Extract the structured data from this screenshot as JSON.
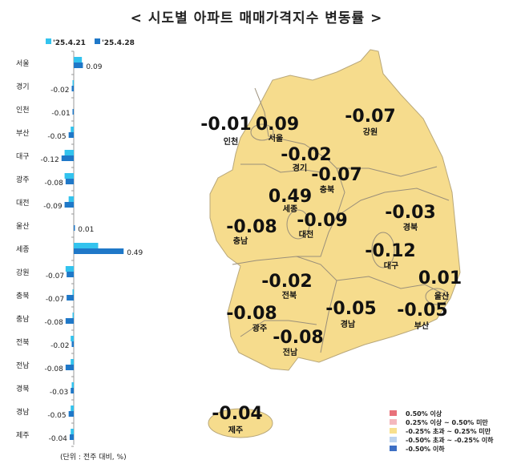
{
  "title": "< 시도별 아파트 매매가격지수 변동률 >",
  "chart_data": [
    {
      "type": "bar",
      "orientation": "horizontal",
      "categories": [
        "서울",
        "경기",
        "인천",
        "부산",
        "대구",
        "광주",
        "대전",
        "울산",
        "세종",
        "강원",
        "충북",
        "충남",
        "전북",
        "전남",
        "경북",
        "경남",
        "제주"
      ],
      "series": [
        {
          "name": "'25.4.21",
          "color": "#33c3ee",
          "values": [
            0.08,
            -0.01,
            0.0,
            -0.03,
            -0.09,
            -0.09,
            -0.05,
            0.0,
            0.24,
            -0.08,
            -0.01,
            -0.01,
            -0.03,
            -0.03,
            -0.02,
            -0.03,
            -0.03
          ]
        },
        {
          "name": "'25.4.28",
          "color": "#1f78c8",
          "values": [
            0.09,
            -0.02,
            -0.01,
            -0.05,
            -0.12,
            -0.08,
            -0.09,
            0.01,
            0.49,
            -0.07,
            -0.07,
            -0.08,
            -0.02,
            -0.08,
            -0.03,
            -0.05,
            -0.04
          ]
        }
      ],
      "data_labels": [
        "0.09",
        "-0.02",
        "-0.01",
        "-0.05",
        "-0.12",
        "-0.08",
        "-0.09",
        "0.01",
        "0.49",
        "-0.07",
        "-0.07",
        "-0.08",
        "-0.02",
        "-0.08",
        "-0.03",
        "-0.05",
        "-0.04"
      ],
      "legend_position": "top",
      "unit_note": "(단위 : 전주 대비, %)"
    },
    {
      "type": "choropleth-map",
      "regions": [
        {
          "name": "인천",
          "value": "-0.01"
        },
        {
          "name": "서울",
          "value": "0.09"
        },
        {
          "name": "경기",
          "value": "-0.02"
        },
        {
          "name": "강원",
          "value": "-0.07"
        },
        {
          "name": "충북",
          "value": "-0.07"
        },
        {
          "name": "세종",
          "value": "0.49"
        },
        {
          "name": "대전",
          "value": "-0.09"
        },
        {
          "name": "충남",
          "value": "-0.08"
        },
        {
          "name": "경북",
          "value": "-0.03"
        },
        {
          "name": "대구",
          "value": "-0.12"
        },
        {
          "name": "울산",
          "value": "0.01"
        },
        {
          "name": "전북",
          "value": "-0.02"
        },
        {
          "name": "광주",
          "value": "-0.08"
        },
        {
          "name": "경남",
          "value": "-0.05"
        },
        {
          "name": "부산",
          "value": "-0.05"
        },
        {
          "name": "전남",
          "value": "-0.08"
        },
        {
          "name": "제주",
          "value": "-0.04"
        }
      ],
      "fill": "#f6dc8d",
      "legend": [
        {
          "label": "0.50% 이상",
          "color": "#e8717a"
        },
        {
          "label": "0.25% 이상 ~ 0.50% 미만",
          "color": "#f4b8bd"
        },
        {
          "label": "-0.25% 초과 ~ 0.25% 미만",
          "color": "#f8e08e"
        },
        {
          "label": "-0.50% 초과 ~ -0.25% 이하",
          "color": "#bcd3ef"
        },
        {
          "label": "-0.50% 이하",
          "color": "#3d6fc4"
        }
      ]
    }
  ]
}
